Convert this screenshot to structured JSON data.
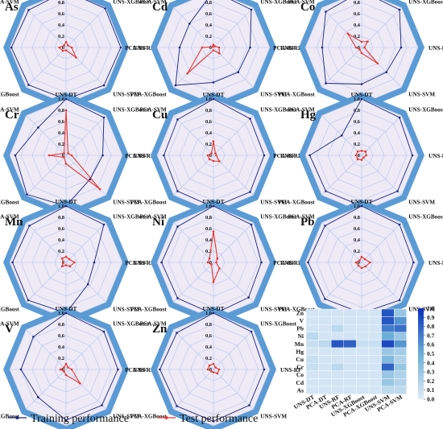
{
  "axes": [
    "UNS-DT",
    "UNS-XGBoost",
    "UNS-RF",
    "UNS-SVM",
    "PCA-DT",
    "PCA-XGBoost",
    "PCA-RF",
    "PCA-SVM"
  ],
  "ticks": [
    "0",
    "0.2",
    "0.4",
    "0.6",
    "0.8",
    "1.0"
  ],
  "colors": {
    "training": "#1a237e",
    "test": "#e53935",
    "outer_band": "#5b9bd5",
    "inner_fill": "#eeeaf6",
    "grid": "#b6c6ea"
  },
  "legend": {
    "training": "Training performance",
    "test": "Test performance"
  },
  "chart_data": [
    {
      "type": "radar",
      "title": "As",
      "series": [
        {
          "name": "Training performance",
          "values": [
            1.0,
            0.98,
            0.97,
            0.95,
            0.92,
            0.94,
            0.97,
            0.94
          ]
        },
        {
          "name": "Test performance",
          "values": [
            0.1,
            0.05,
            0.1,
            0.25,
            0.05,
            0.08,
            0.12,
            0.05
          ]
        }
      ]
    },
    {
      "type": "radar",
      "title": "Cd",
      "series": [
        {
          "name": "Training performance",
          "values": [
            1.0,
            0.95,
            0.65,
            0.62,
            0.62,
            0.95,
            0.6,
            0.6
          ]
        },
        {
          "name": "Test performance",
          "values": [
            0.05,
            0.03,
            0.1,
            0.15,
            0.05,
            0.65,
            0.2,
            0.02
          ]
        }
      ]
    },
    {
      "type": "radar",
      "title": "Co",
      "series": [
        {
          "name": "Training performance",
          "values": [
            1.0,
            0.95,
            0.7,
            0.62,
            0.65,
            0.9,
            0.7,
            0.9
          ]
        },
        {
          "name": "Test performance",
          "values": [
            0.1,
            0.15,
            0.05,
            0.4,
            0.1,
            0.05,
            0.1,
            0.35
          ]
        }
      ]
    },
    {
      "type": "radar",
      "title": "Cr",
      "series": [
        {
          "name": "Training performance",
          "values": [
            1.0,
            0.95,
            0.65,
            0.6,
            0.9,
            0.98,
            0.9,
            0.7
          ]
        },
        {
          "name": "Test performance",
          "values": [
            0.8,
            0.05,
            0.1,
            0.85,
            0.15,
            0.05,
            0.3,
            0.05
          ]
        }
      ]
    },
    {
      "type": "radar",
      "title": "Cu",
      "series": [
        {
          "name": "Training performance",
          "values": [
            1.0,
            0.92,
            0.9,
            0.92,
            0.92,
            0.9,
            0.88,
            0.9
          ]
        },
        {
          "name": "Test performance",
          "values": [
            0.25,
            0.05,
            0.05,
            0.15,
            0.1,
            0.1,
            0.1,
            0.05
          ]
        }
      ]
    },
    {
      "type": "radar",
      "title": "Hg",
      "series": [
        {
          "name": "Training performance",
          "values": [
            1.0,
            0.95,
            0.9,
            0.9,
            0.9,
            0.9,
            0.92,
            0.5
          ]
        },
        {
          "name": "Test performance",
          "values": [
            0.08,
            0.1,
            0.08,
            0.05,
            0.08,
            0.1,
            0.1,
            0.1
          ]
        }
      ]
    },
    {
      "type": "radar",
      "title": "Mn",
      "series": [
        {
          "name": "Training performance",
          "values": [
            1.0,
            0.95,
            0.5,
            0.55,
            0.9,
            0.95,
            0.95,
            0.92
          ]
        },
        {
          "name": "Test performance",
          "values": [
            0.1,
            0.08,
            0.15,
            0.1,
            0.05,
            0.1,
            0.05,
            0.1
          ]
        }
      ]
    },
    {
      "type": "radar",
      "title": "Ni",
      "series": [
        {
          "name": "Training performance",
          "values": [
            1.0,
            0.95,
            0.85,
            0.88,
            0.92,
            0.9,
            0.92,
            0.9
          ]
        },
        {
          "name": "Test performance",
          "values": [
            0.55,
            0.1,
            0.05,
            0.15,
            0.35,
            0.05,
            0.1,
            0.1
          ]
        }
      ]
    },
    {
      "type": "radar",
      "title": "Pb",
      "series": [
        {
          "name": "Training performance",
          "values": [
            1.0,
            0.95,
            0.92,
            0.95,
            0.9,
            0.92,
            0.95,
            0.92
          ]
        },
        {
          "name": "Test performance",
          "values": [
            0.1,
            0.08,
            0.15,
            0.1,
            0.1,
            0.08,
            0.1,
            0.05
          ]
        }
      ]
    },
    {
      "type": "radar",
      "title": "V",
      "series": [
        {
          "name": "Training performance",
          "values": [
            1.0,
            0.95,
            0.92,
            0.9,
            0.9,
            0.7,
            0.8,
            0.82
          ]
        },
        {
          "name": "Test performance",
          "values": [
            0.1,
            0.05,
            0.1,
            0.35,
            0.1,
            0.05,
            0.1,
            0.05
          ]
        }
      ]
    },
    {
      "type": "radar",
      "title": "Zn",
      "series": [
        {
          "name": "Training performance",
          "values": [
            1.0,
            0.95,
            0.9,
            0.9,
            0.92,
            0.92,
            0.95,
            0.92
          ]
        },
        {
          "name": "Test performance",
          "values": [
            0.1,
            0.05,
            0.1,
            0.1,
            0.05,
            0.05,
            0.1,
            0.1
          ]
        }
      ]
    },
    {
      "type": "heatmap",
      "rows": [
        "Zn",
        "V",
        "Pb",
        "Ni",
        "Mn",
        "Hg",
        "Cu",
        "Cr",
        "Co",
        "Cd",
        "As"
      ],
      "columns": [
        "UNS-DT",
        "PCA-DT",
        "UNS-RF",
        "PCA-RF",
        "UNS-XGBoost",
        "PCA-XGBoost",
        "UNS-SVM",
        "PCA-SVM"
      ],
      "values": [
        [
          0.05,
          0.05,
          0.05,
          0.05,
          0.05,
          0.05,
          0.85,
          0.3
        ],
        [
          0.05,
          0.05,
          0.05,
          0.05,
          0.05,
          0.05,
          0.85,
          0.6
        ],
        [
          0.05,
          0.05,
          0.15,
          0.05,
          0.05,
          0.05,
          0.7,
          0.75
        ],
        [
          0.15,
          0.05,
          0.05,
          0.05,
          0.05,
          0.05,
          0.5,
          0.3
        ],
        [
          0.1,
          0.15,
          0.85,
          0.8,
          0.1,
          0.1,
          0.9,
          0.6
        ],
        [
          0.05,
          0.05,
          0.05,
          0.05,
          0.05,
          0.05,
          0.3,
          0.25
        ],
        [
          0.1,
          0.05,
          0.05,
          0.05,
          0.05,
          0.05,
          0.4,
          0.2
        ],
        [
          0.1,
          0.05,
          0.15,
          0.05,
          0.05,
          0.05,
          0.8,
          0.3
        ],
        [
          0.05,
          0.05,
          0.05,
          0.05,
          0.05,
          0.05,
          0.3,
          0.2
        ],
        [
          0.05,
          0.05,
          0.05,
          0.05,
          0.05,
          0.05,
          0.3,
          0.2
        ],
        [
          0.05,
          0.05,
          0.05,
          0.05,
          0.05,
          0.05,
          0.15,
          0.15
        ]
      ],
      "colorbar": {
        "ticks": [
          "0.0",
          "0.1",
          "0.2",
          "0.3",
          "0.4",
          "0.5",
          "0.6",
          "0.7",
          "0.8",
          "0.9",
          "1.0"
        ],
        "range": [
          0,
          1
        ]
      }
    }
  ]
}
